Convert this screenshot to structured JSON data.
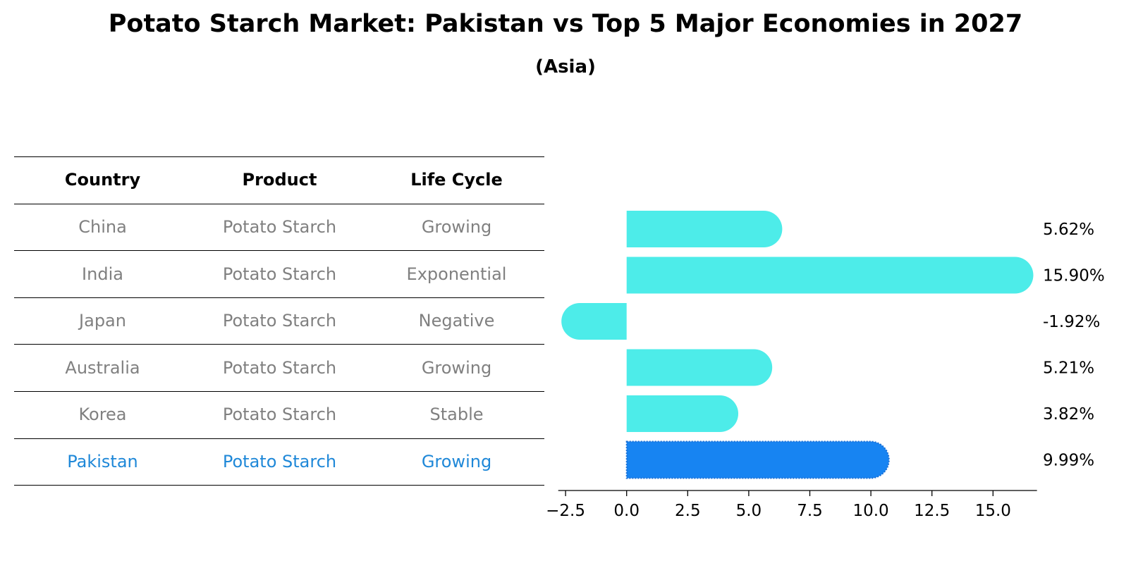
{
  "title": "Potato Starch Market: Pakistan vs Top 5 Major Economies in 2027",
  "subtitle": "(Asia)",
  "table": {
    "headers": [
      "Country",
      "Product",
      "Life Cycle"
    ],
    "rows": [
      {
        "country": "China",
        "product": "Potato Starch",
        "life_cycle": "Growing",
        "highlight": false
      },
      {
        "country": "India",
        "product": "Potato Starch",
        "life_cycle": "Exponential",
        "highlight": false
      },
      {
        "country": "Japan",
        "product": "Potato Starch",
        "life_cycle": "Negative",
        "highlight": false
      },
      {
        "country": "Australia",
        "product": "Potato Starch",
        "life_cycle": "Growing",
        "highlight": false
      },
      {
        "country": "Korea",
        "product": "Potato Starch",
        "life_cycle": "Stable",
        "highlight": false
      },
      {
        "country": "Pakistan",
        "product": "Potato Starch",
        "life_cycle": "Growing",
        "highlight": true
      }
    ]
  },
  "colors": {
    "bar": "#4dece9",
    "highlight_bar": "#1784f2",
    "highlight_text": "#1f88d8",
    "muted_text": "#808080"
  },
  "chart_data": {
    "type": "bar",
    "orientation": "horizontal",
    "categories": [
      "China",
      "India",
      "Japan",
      "Australia",
      "Korea",
      "Pakistan"
    ],
    "values": [
      5.62,
      15.9,
      -1.92,
      5.21,
      3.82,
      9.99
    ],
    "value_labels": [
      "5.62%",
      "15.90%",
      "-1.92%",
      "5.21%",
      "3.82%",
      "9.99%"
    ],
    "highlight_category": "Pakistan",
    "xlim": [
      -2.8,
      16.8
    ],
    "xticks": [
      -2.5,
      0.0,
      2.5,
      5.0,
      7.5,
      10.0,
      12.5,
      15.0
    ],
    "xtick_labels": [
      "−2.5",
      "0.0",
      "2.5",
      "5.0",
      "7.5",
      "10.0",
      "12.5",
      "15.0"
    ],
    "xlabel": "",
    "ylabel": "",
    "grid": false
  }
}
